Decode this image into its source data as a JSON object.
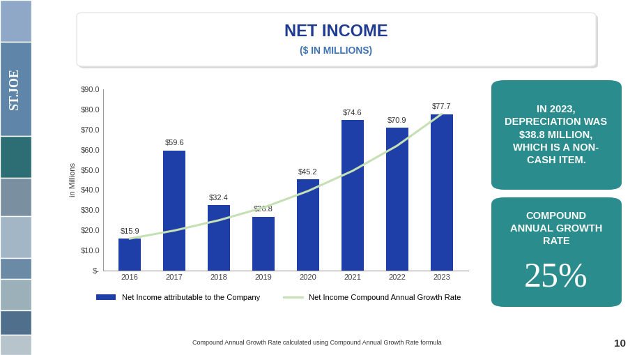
{
  "chart_data": {
    "type": "bar",
    "title": "NET INCOME",
    "subtitle": "($ IN MILLIONS)",
    "y_label": "in Millions",
    "categories": [
      "2016",
      "2017",
      "2018",
      "2019",
      "2020",
      "2021",
      "2022",
      "2023"
    ],
    "series": [
      {
        "name": "Net Income attributable to the Company",
        "type": "bar",
        "color": "#1f3fa8",
        "values": [
          15.9,
          59.6,
          32.4,
          26.8,
          45.2,
          74.6,
          70.9,
          77.7
        ],
        "value_labels": [
          "$15.9",
          "$59.6",
          "$32.4",
          "$26.8",
          "$45.2",
          "$74.6",
          "$70.9",
          "$77.7"
        ],
        "data_labels": true
      },
      {
        "name": "Net Income Compound Annual Growth Rate",
        "type": "line",
        "color": "#c5e0b4",
        "line_style": "solid",
        "values": [
          15.9,
          19.9,
          25.0,
          31.3,
          39.5,
          49.5,
          62.0,
          77.7
        ]
      }
    ],
    "ylim": [
      0,
      90
    ],
    "yticks": [
      {
        "value": 0,
        "label": "$-"
      },
      {
        "value": 10,
        "label": "$10.0"
      },
      {
        "value": 20,
        "label": "$20.0"
      },
      {
        "value": 30,
        "label": "$30.0"
      },
      {
        "value": 40,
        "label": "$40.0"
      },
      {
        "value": 50,
        "label": "$50.0"
      },
      {
        "value": 60,
        "label": "$60.0"
      },
      {
        "value": 70,
        "label": "$70.0"
      },
      {
        "value": 80,
        "label": "$80.0"
      },
      {
        "value": 90,
        "label": "$90.0"
      }
    ],
    "grid": false,
    "legend": "lower center"
  },
  "callouts": [
    {
      "lines": [
        "IN 2023,",
        "DEPRECIATION WAS",
        "$38.8 MILLION,",
        "WHICH IS A NON-",
        "CASH ITEM."
      ]
    },
    {
      "lines": [
        "COMPOUND",
        "ANNUAL GROWTH",
        "RATE"
      ],
      "big_text": "25%"
    }
  ],
  "footnote": "Compound Annual Growth Rate calculated using Compound Annual Growth Rate formula",
  "page_number": "10",
  "logo": "ST.JOE"
}
